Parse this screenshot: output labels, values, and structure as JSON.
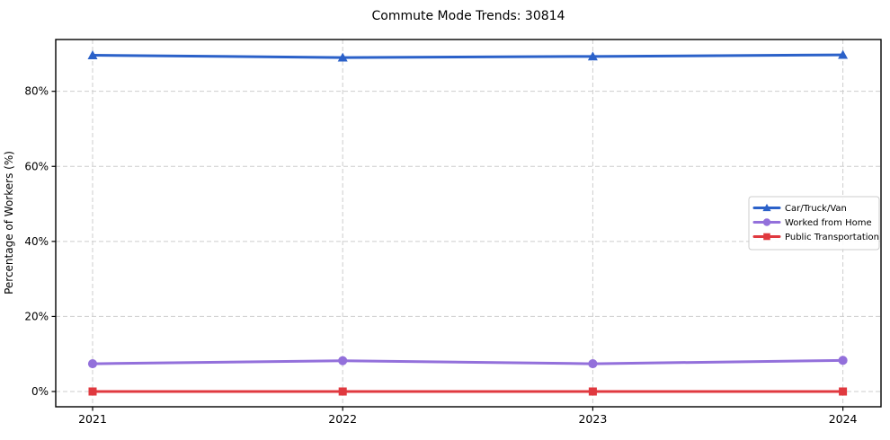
{
  "figure": {
    "background": "#ffffff",
    "plot_border_color": "#000000"
  },
  "chart_data": {
    "type": "line",
    "title": "Commute Mode Trends: 30814",
    "xlabel": "",
    "ylabel": "Percentage of Workers (%)",
    "x": [
      "2021",
      "2022",
      "2023",
      "2024"
    ],
    "y_ticks": [
      0,
      20,
      40,
      60,
      80
    ],
    "y_tick_labels": [
      "0%",
      "20%",
      "40%",
      "60%",
      "80%"
    ],
    "ylim": [
      -4.1,
      93.8
    ],
    "grid": true,
    "grid_style": "dashed",
    "grid_color": "#cdcdcd",
    "legend_position": "center-right",
    "series": [
      {
        "name": "Car/Truck/Van",
        "color": "#2b61c9",
        "marker": "triangle",
        "values": [
          89.6,
          89.0,
          89.3,
          89.7
        ]
      },
      {
        "name": "Worked from Home",
        "color": "#9370db",
        "marker": "circle",
        "values": [
          7.4,
          8.2,
          7.4,
          8.3
        ]
      },
      {
        "name": "Public Transportation",
        "color": "#e0393f",
        "marker": "square",
        "values": [
          0.0,
          0.0,
          0.0,
          0.0
        ]
      }
    ]
  }
}
